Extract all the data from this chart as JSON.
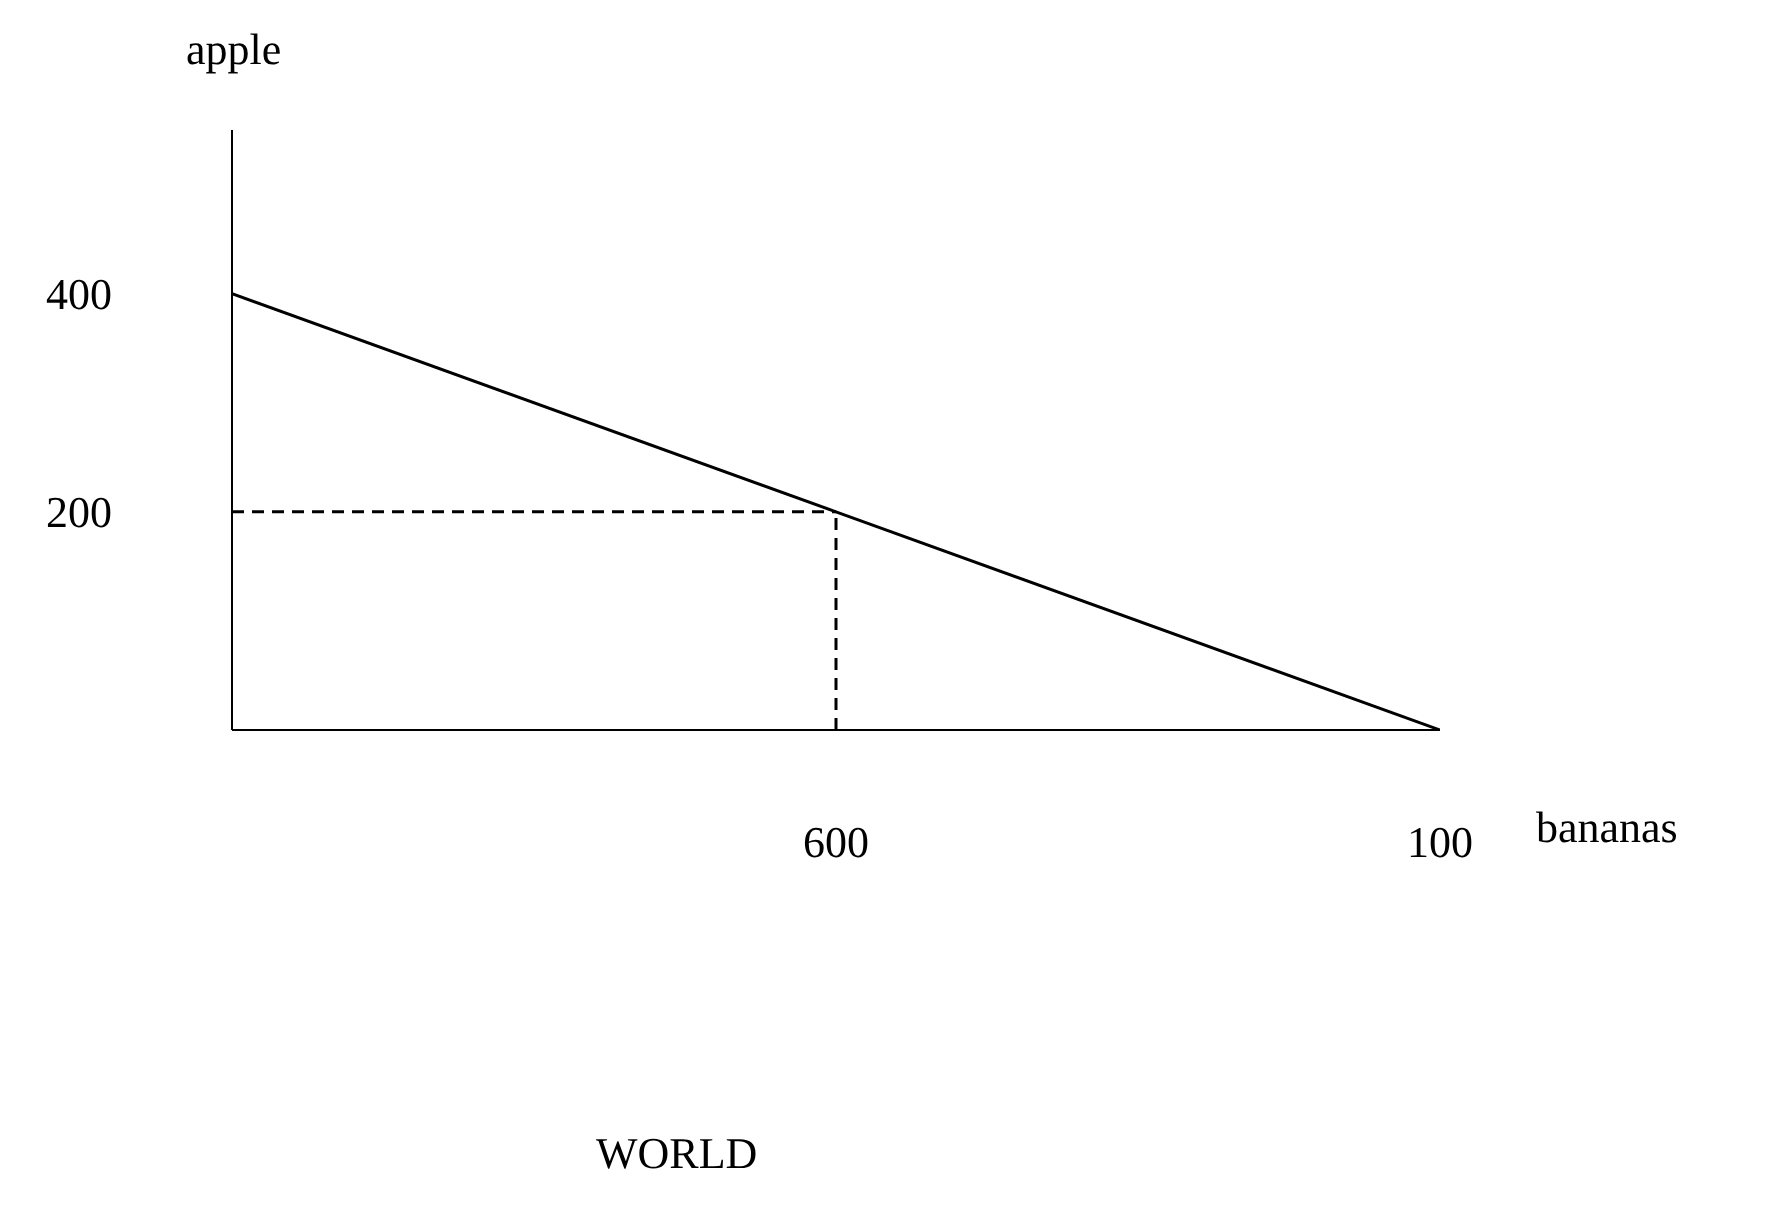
{
  "chart_data": {
    "type": "line",
    "title": "WORLD",
    "xlabel": "bananas",
    "ylabel": "apple",
    "categories": [
      null,
      "600",
      "100"
    ],
    "ylim": [
      0,
      550
    ],
    "yticks": [
      200,
      400
    ],
    "series": [
      {
        "color": "#000000",
        "values": [
          400,
          200,
          0
        ],
        "line_style": "solid"
      },
      {
        "color": "#000000",
        "values": [
          200,
          200,
          null
        ],
        "line_style": "dashed"
      },
      {
        "color": "#000000",
        "x": [
          "600",
          "600"
        ],
        "values": [
          0,
          200
        ],
        "line_style": "dashed"
      }
    ]
  }
}
